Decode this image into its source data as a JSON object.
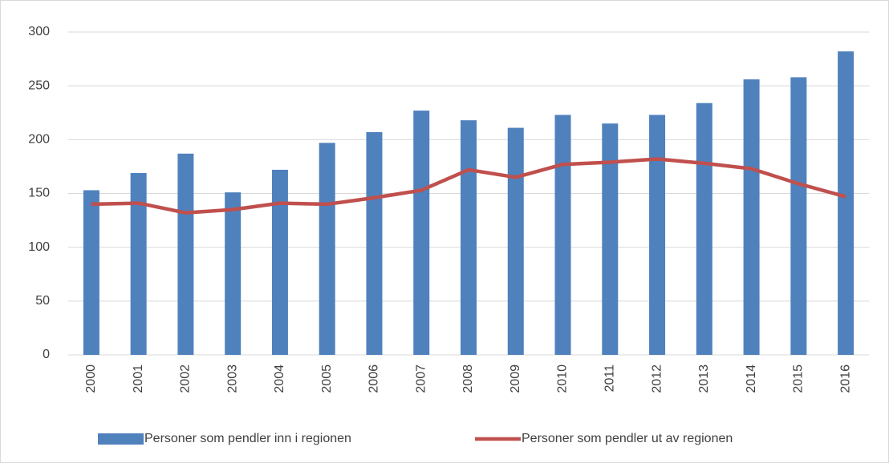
{
  "chart_data": {
    "type": "bar",
    "categories": [
      "2000",
      "2001",
      "2002",
      "2003",
      "2004",
      "2005",
      "2006",
      "2007",
      "2008",
      "2009",
      "2010",
      "2011",
      "2012",
      "2013",
      "2014",
      "2015",
      "2016"
    ],
    "series": [
      {
        "name": "Personer som pendler inn i regionen",
        "type": "bar",
        "color": "#4f81bd",
        "values": [
          153,
          169,
          187,
          151,
          172,
          197,
          207,
          227,
          218,
          211,
          223,
          215,
          223,
          234,
          256,
          258,
          282
        ]
      },
      {
        "name": "Personer som pendler ut av regionen",
        "type": "line",
        "color": "#c0504d",
        "values": [
          140,
          141,
          132,
          135,
          141,
          140,
          146,
          153,
          172,
          165,
          177,
          179,
          182,
          178,
          173,
          159,
          147
        ]
      }
    ],
    "ylim": [
      0,
      300
    ],
    "yticks": [
      0,
      50,
      100,
      150,
      200,
      250,
      300
    ],
    "grid": true,
    "legend": "bottom"
  }
}
